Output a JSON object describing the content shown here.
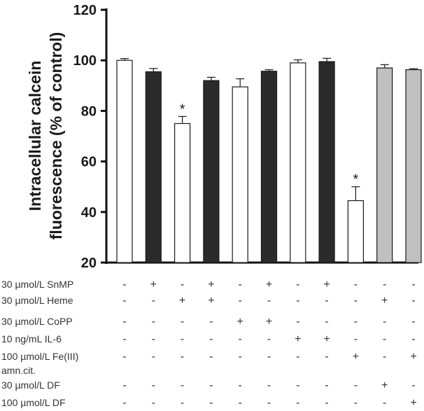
{
  "chart_data": {
    "type": "bar",
    "ylabel": [
      "Intracellular calcein",
      "fluorescence (% of control)"
    ],
    "ylim": [
      20,
      120
    ],
    "yticks": [
      20,
      40,
      60,
      80,
      100,
      120
    ],
    "grid": false,
    "bars": [
      {
        "value": 100,
        "error": 0.7,
        "fill": "#ffffff",
        "significant": false
      },
      {
        "value": 95.5,
        "error": 1.3,
        "fill": "#2b2b2b",
        "significant": false
      },
      {
        "value": 75,
        "error": 2.8,
        "fill": "#ffffff",
        "significant": true
      },
      {
        "value": 92,
        "error": 1.3,
        "fill": "#2b2b2b",
        "significant": false
      },
      {
        "value": 89.5,
        "error": 3.2,
        "fill": "#ffffff",
        "significant": false
      },
      {
        "value": 95.7,
        "error": 0.6,
        "fill": "#2b2b2b",
        "significant": false
      },
      {
        "value": 99,
        "error": 1.2,
        "fill": "#ffffff",
        "significant": false
      },
      {
        "value": 99.5,
        "error": 1.3,
        "fill": "#2b2b2b",
        "significant": false
      },
      {
        "value": 44.5,
        "error": 5.5,
        "fill": "#ffffff",
        "significant": true
      },
      {
        "value": 97,
        "error": 1.3,
        "fill": "#c0c0c0",
        "significant": false
      },
      {
        "value": 96.3,
        "error": 0.4,
        "fill": "#c0c0c0",
        "significant": false
      }
    ],
    "significance_marker": "*",
    "treatments": [
      {
        "label": [
          "30 µmol/L SnMP"
        ],
        "signs": [
          "-",
          "+",
          "-",
          "+",
          "-",
          "+",
          "-",
          "+",
          "-",
          "-",
          "-"
        ]
      },
      {
        "label": [
          "30 µmol/L Heme"
        ],
        "signs": [
          "-",
          "-",
          "+",
          "+",
          "-",
          "-",
          "-",
          "-",
          "-",
          "+",
          "-"
        ]
      },
      {
        "label": [
          "30 µmol/L CoPP"
        ],
        "signs": [
          "-",
          "-",
          "-",
          "-",
          "+",
          "+",
          "-",
          "-",
          "-",
          "-",
          "-"
        ]
      },
      {
        "label": [
          "10 ng/mL IL-6"
        ],
        "signs": [
          "-",
          "-",
          "-",
          "-",
          "-",
          "-",
          "+",
          "+",
          "-",
          "-",
          "-"
        ]
      },
      {
        "label": [
          "100 µmol/L Fe(III)",
          "amn.cit."
        ],
        "signs": [
          "-",
          "-",
          "-",
          "-",
          "-",
          "-",
          "-",
          "-",
          "+",
          "-",
          "+"
        ]
      },
      {
        "label": [
          "30 µmol/L DF"
        ],
        "signs": [
          "-",
          "-",
          "-",
          "-",
          "-",
          "-",
          "-",
          "-",
          "-",
          "+",
          "-"
        ]
      },
      {
        "label": [
          "100 µmol/L DF"
        ],
        "signs": [
          "-",
          "-",
          "-",
          "-",
          "-",
          "-",
          "-",
          "-",
          "-",
          "-",
          "+"
        ]
      }
    ],
    "colors": {
      "axis": "#111111",
      "bar_stroke": "#1a1a1a",
      "text": "#333333"
    }
  }
}
